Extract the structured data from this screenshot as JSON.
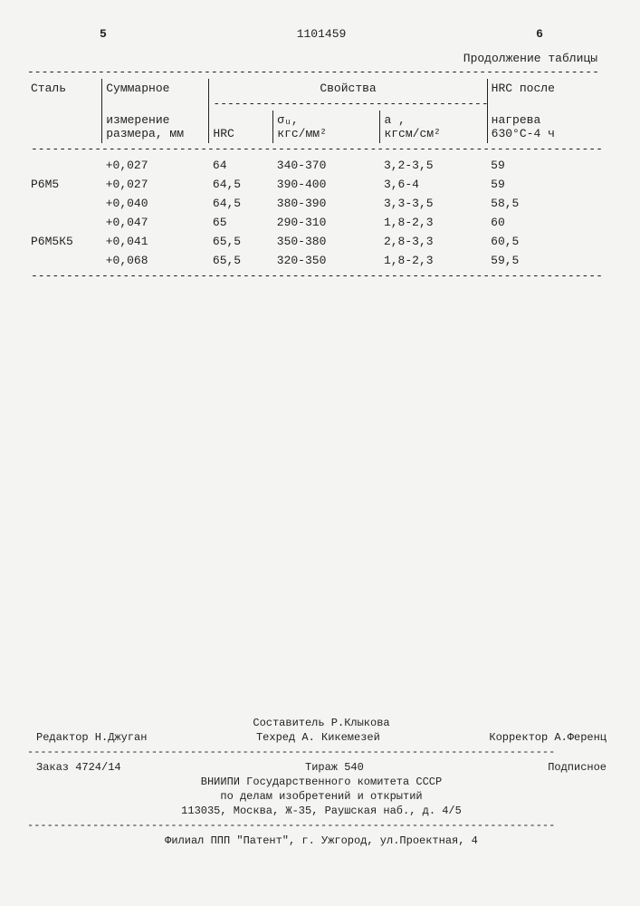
{
  "page": {
    "left_num": "5",
    "center_num": "1101459",
    "right_num": "6",
    "continuation": "Продолжение таблицы",
    "columns": {
      "steel": "Сталь",
      "meas_l1": "Суммарное",
      "meas_l2": "измерение",
      "meas_l3": "размера, мм",
      "props": "Свойства",
      "hrc": "HRC",
      "sigma_l1": "σᵤ,",
      "sigma_l2": "кгс/мм²",
      "a_l1": "а ,",
      "a_l2": "кгсм/см²",
      "hrc2_l1": "HRC после",
      "hrc2_l2": "нагрева",
      "hrc2_l3": "630°С-4 ч"
    },
    "rows": [
      {
        "steel": "",
        "meas": "+0,027",
        "hrc": "64",
        "sigma": "340-370",
        "a": "3,2-3,5",
        "hrc2": "59"
      },
      {
        "steel": "Р6М5",
        "meas": "+0,027",
        "hrc": "64,5",
        "sigma": "390-400",
        "a": "3,6-4",
        "hrc2": "59"
      },
      {
        "steel": "",
        "meas": "+0,040",
        "hrc": "64,5",
        "sigma": "380-390",
        "a": "3,3-3,5",
        "hrc2": "58,5"
      },
      {
        "steel": "",
        "meas": "+0,047",
        "hrc": "65",
        "sigma": "290-310",
        "a": "1,8-2,3",
        "hrc2": "60"
      },
      {
        "steel": "Р6М5К5",
        "meas": "+0,041",
        "hrc": "65,5",
        "sigma": "350-380",
        "a": "2,8-3,3",
        "hrc2": "60,5"
      },
      {
        "steel": "",
        "meas": "+0,068",
        "hrc": "65,5",
        "sigma": "320-350",
        "a": "1,8-2,3",
        "hrc2": "59,5"
      }
    ],
    "footer": {
      "compiler": "Составитель Р.Клыкова",
      "editor": "Редактор Н.Джуган",
      "techred": "Техред А. Кикемезей",
      "corrector": "Корректор А.Ференц",
      "order": "Заказ 4724/14",
      "circulation": "Тираж 540",
      "subscription": "Подписное",
      "org1": "ВНИИПИ Государственного комитета СССР",
      "org2": "по делам изобретений и открытий",
      "address": "113035, Москва, Ж-35, Раушская наб., д. 4/5",
      "branch": "Филиал ППП \"Патент\", г. Ужгород, ул.Проектная, 4"
    },
    "dash80": "---------------------------------------------------------------------------------",
    "dash_short": "---------------------------------------"
  }
}
